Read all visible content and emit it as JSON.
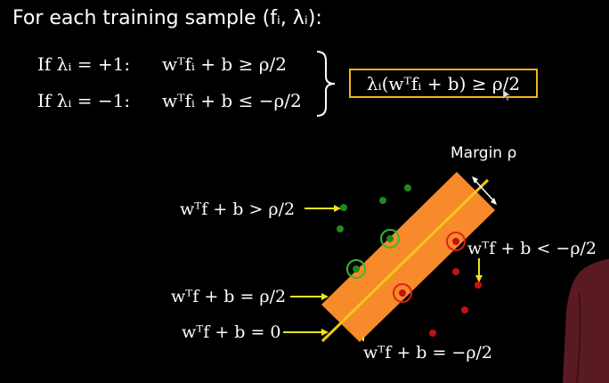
{
  "slide": {
    "title": "For each training sample (fᵢ, λᵢ):",
    "conditions": [
      {
        "case": "If λᵢ = +1:",
        "inequality": "wᵀfᵢ + b ≥ ρ/2"
      },
      {
        "case": "If λᵢ = −1:",
        "inequality": "wᵀfᵢ + b ≤ −ρ/2"
      }
    ],
    "combined": "λᵢ(wᵀfᵢ + b) ≥ ρ/2"
  },
  "diagram": {
    "margin_label": "Margin ρ",
    "labels": {
      "above_positive": "wᵀf + b > ρ/2",
      "positive_boundary": "wᵀf + b = ρ/2",
      "decision_boundary": "wᵀf + b = 0",
      "below_negative": "wᵀf + b < −ρ/2",
      "negative_boundary": "wᵀf + b = −ρ/2"
    },
    "colors": {
      "margin_band": "#f78a2a",
      "decision_line": "#f2c81c",
      "positive_point": "#1e8a1e",
      "negative_point": "#c01414",
      "support_ring_positive": "#33bb33",
      "support_ring_negative": "#dd2020",
      "arrow": "#f2e21c",
      "box_border": "#f2b51c"
    }
  }
}
